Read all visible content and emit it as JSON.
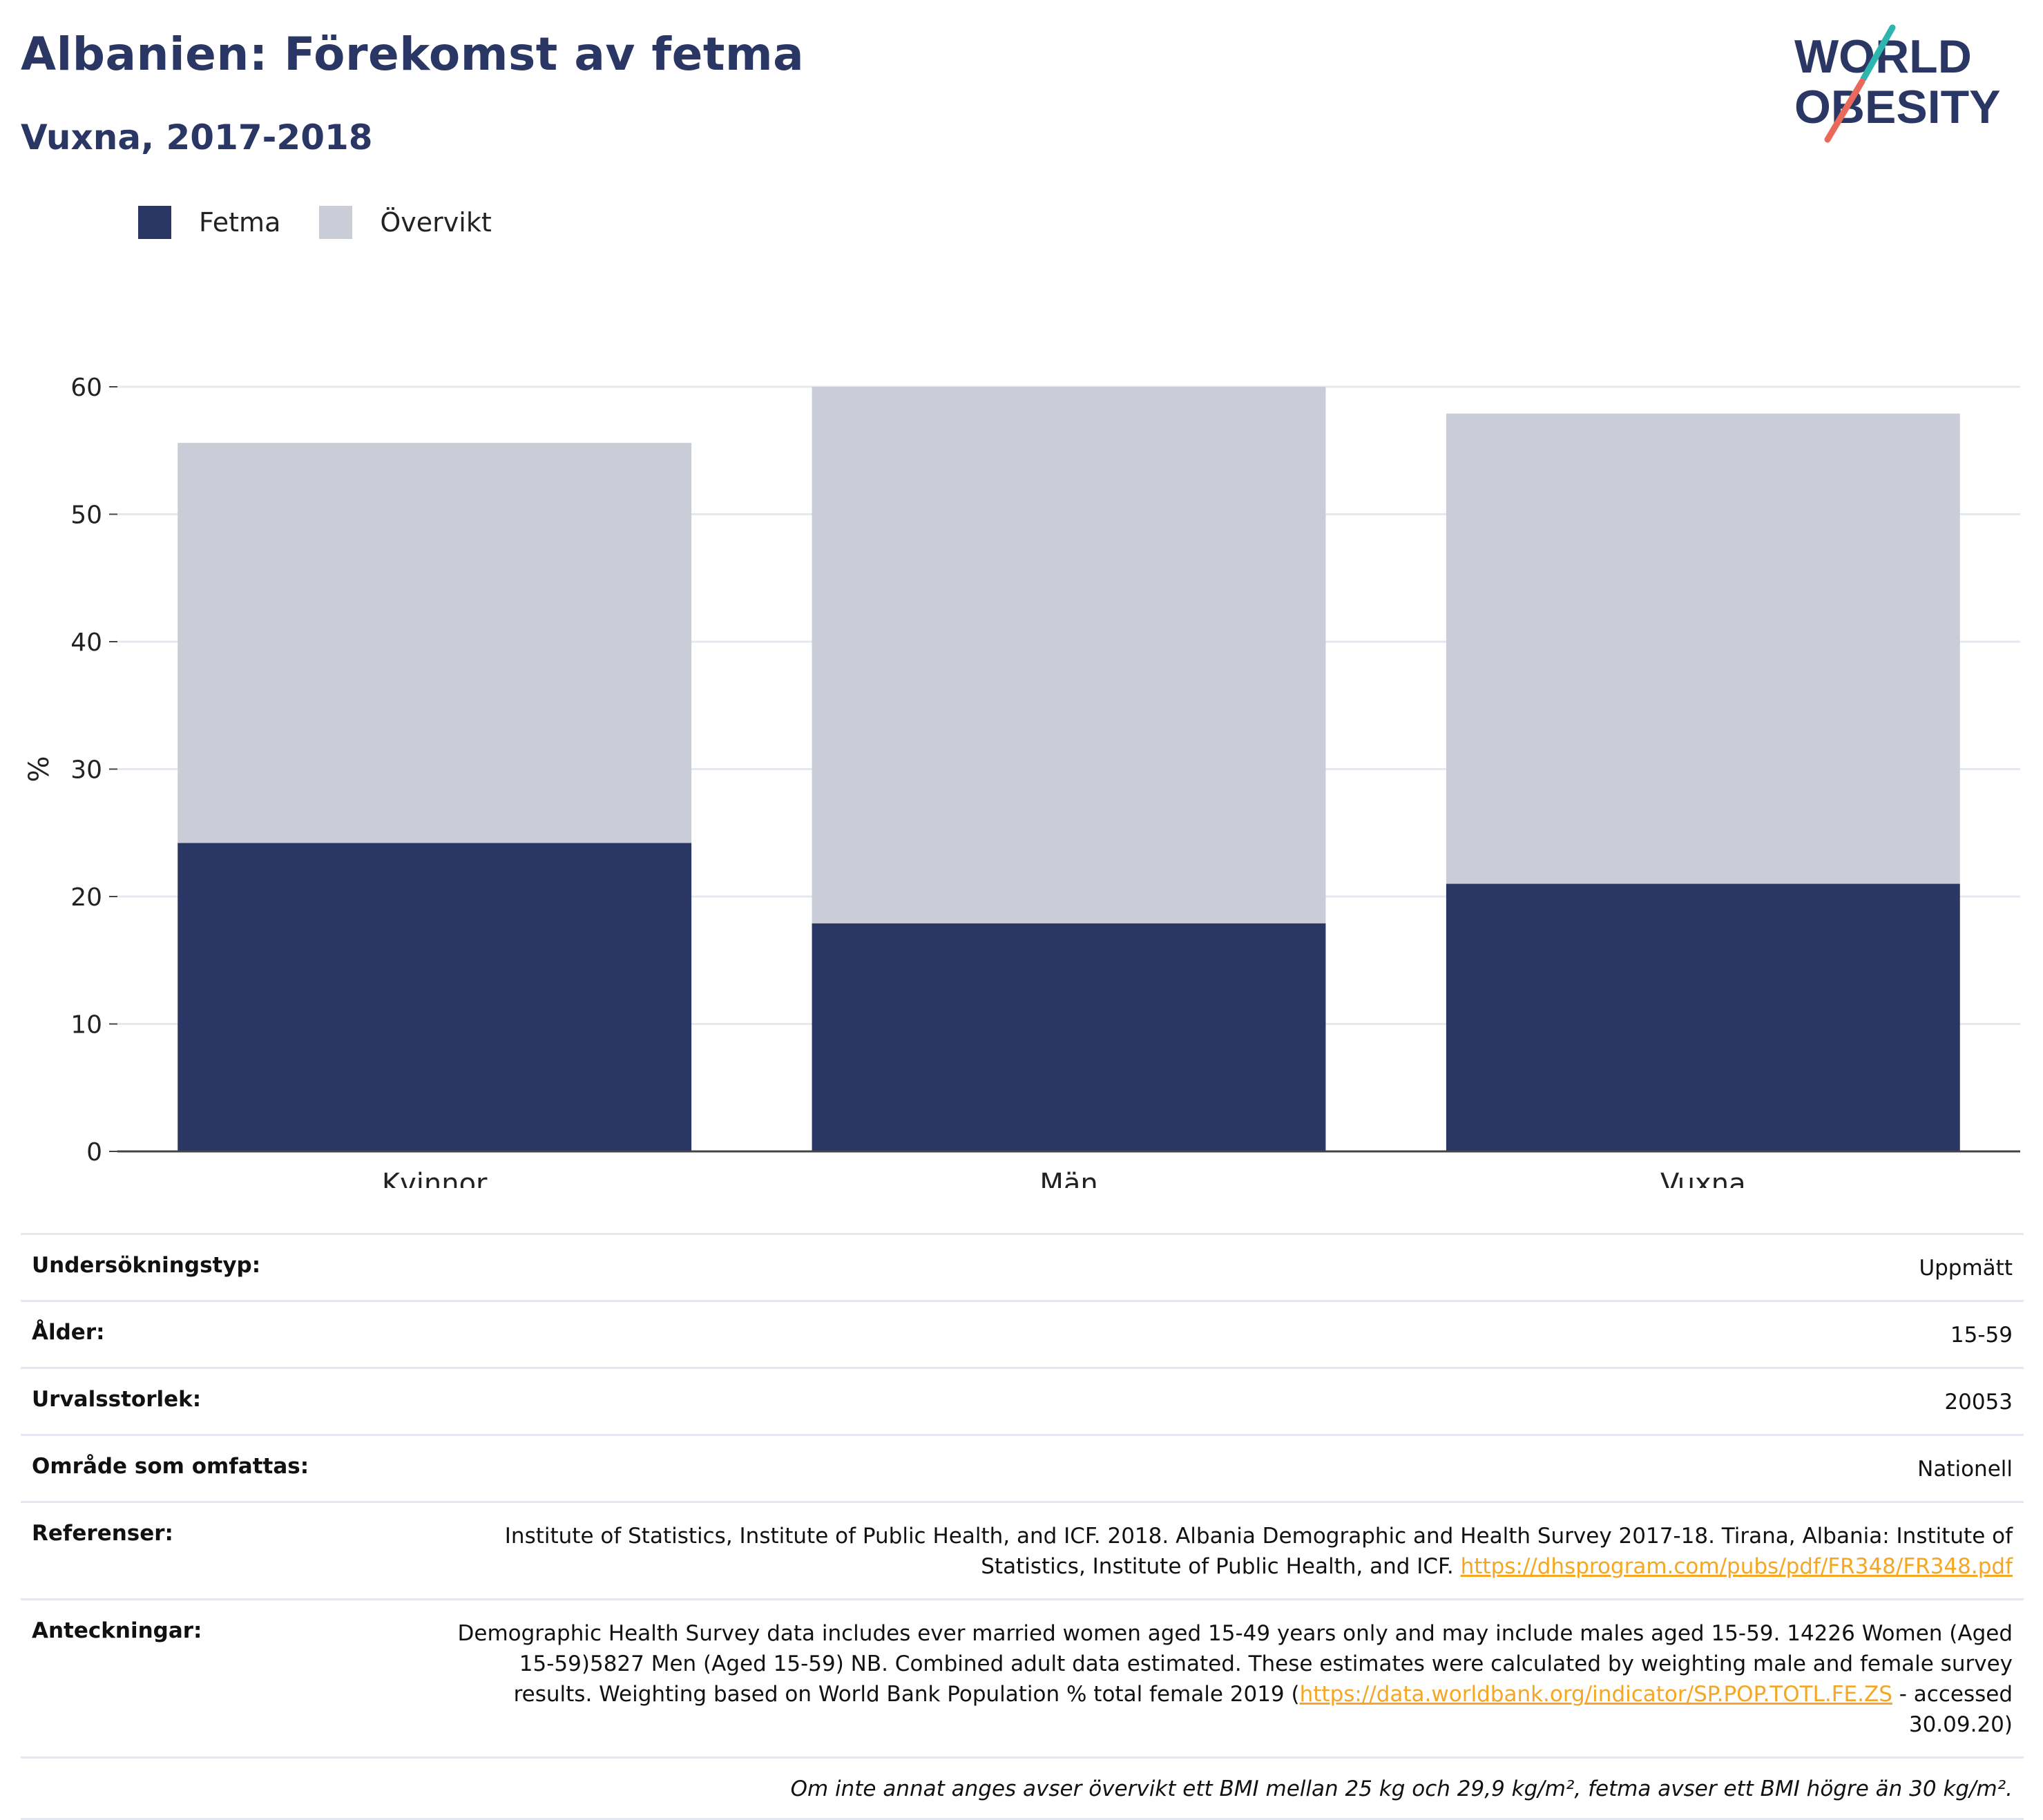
{
  "title": "Albanien: Förekomst av fetma",
  "subtitle": "Vuxna, 2017-2018",
  "logo": {
    "line1": "WORLD",
    "line2": "OBESITY"
  },
  "colors": {
    "fetma": "#2a3664",
    "overvikt": "#caccd8",
    "title": "#2a3664",
    "link": "#f5a623"
  },
  "chart_data": {
    "type": "bar",
    "stacked": true,
    "categories": [
      "Kvinnor",
      "Män",
      "Vuxna"
    ],
    "series": [
      {
        "name": "Fetma",
        "values": [
          24.2,
          17.9,
          21.0
        ]
      },
      {
        "name": "Övervikt",
        "values": [
          31.4,
          42.1,
          36.9
        ]
      }
    ],
    "ylabel": "%",
    "xlabel": "",
    "ylim": [
      0,
      60
    ],
    "yticks": [
      0,
      10,
      20,
      30,
      40,
      50,
      60
    ],
    "grid": true,
    "legend_position": "top-left"
  },
  "info": {
    "rows": [
      {
        "label": "Undersökningstyp:",
        "value": "Uppmätt"
      },
      {
        "label": "Ålder:",
        "value": "15-59"
      },
      {
        "label": "Urvalsstorlek:",
        "value": "20053"
      },
      {
        "label": "Område som omfattas:",
        "value": "Nationell"
      }
    ],
    "references": {
      "label": "Referenser:",
      "text1": "Institute of Statistics, Institute of Public Health, and ICF. 2018. Albania Demographic and Health Survey 2017-18. Tirana, Albania: Institute of Statistics, Institute of Public Health, and ICF.",
      "link": "https://dhsprogram.com/pubs/pdf/FR348/FR348.pdf"
    },
    "notes": {
      "label": "Anteckningar:",
      "text1": "Demographic Health Survey data includes ever married women aged 15-49 years only and may include males aged 15-59. 14226 Women (Aged 15-59)5827 Men (Aged 15-59) NB. Combined adult data estimated. These estimates were calculated by weighting male and female survey results. Weighting based on World Bank Population % total female 2019 (",
      "link": "https://data.worldbank.org/indicator/SP.POP.TOTL.FE.ZS",
      "text2": " - accessed 30.09.20)"
    },
    "footnote": "Om inte annat anges avser övervikt ett BMI mellan 25 kg och 29,9 kg/m², fetma avser ett BMI högre än 30 kg/m²."
  }
}
